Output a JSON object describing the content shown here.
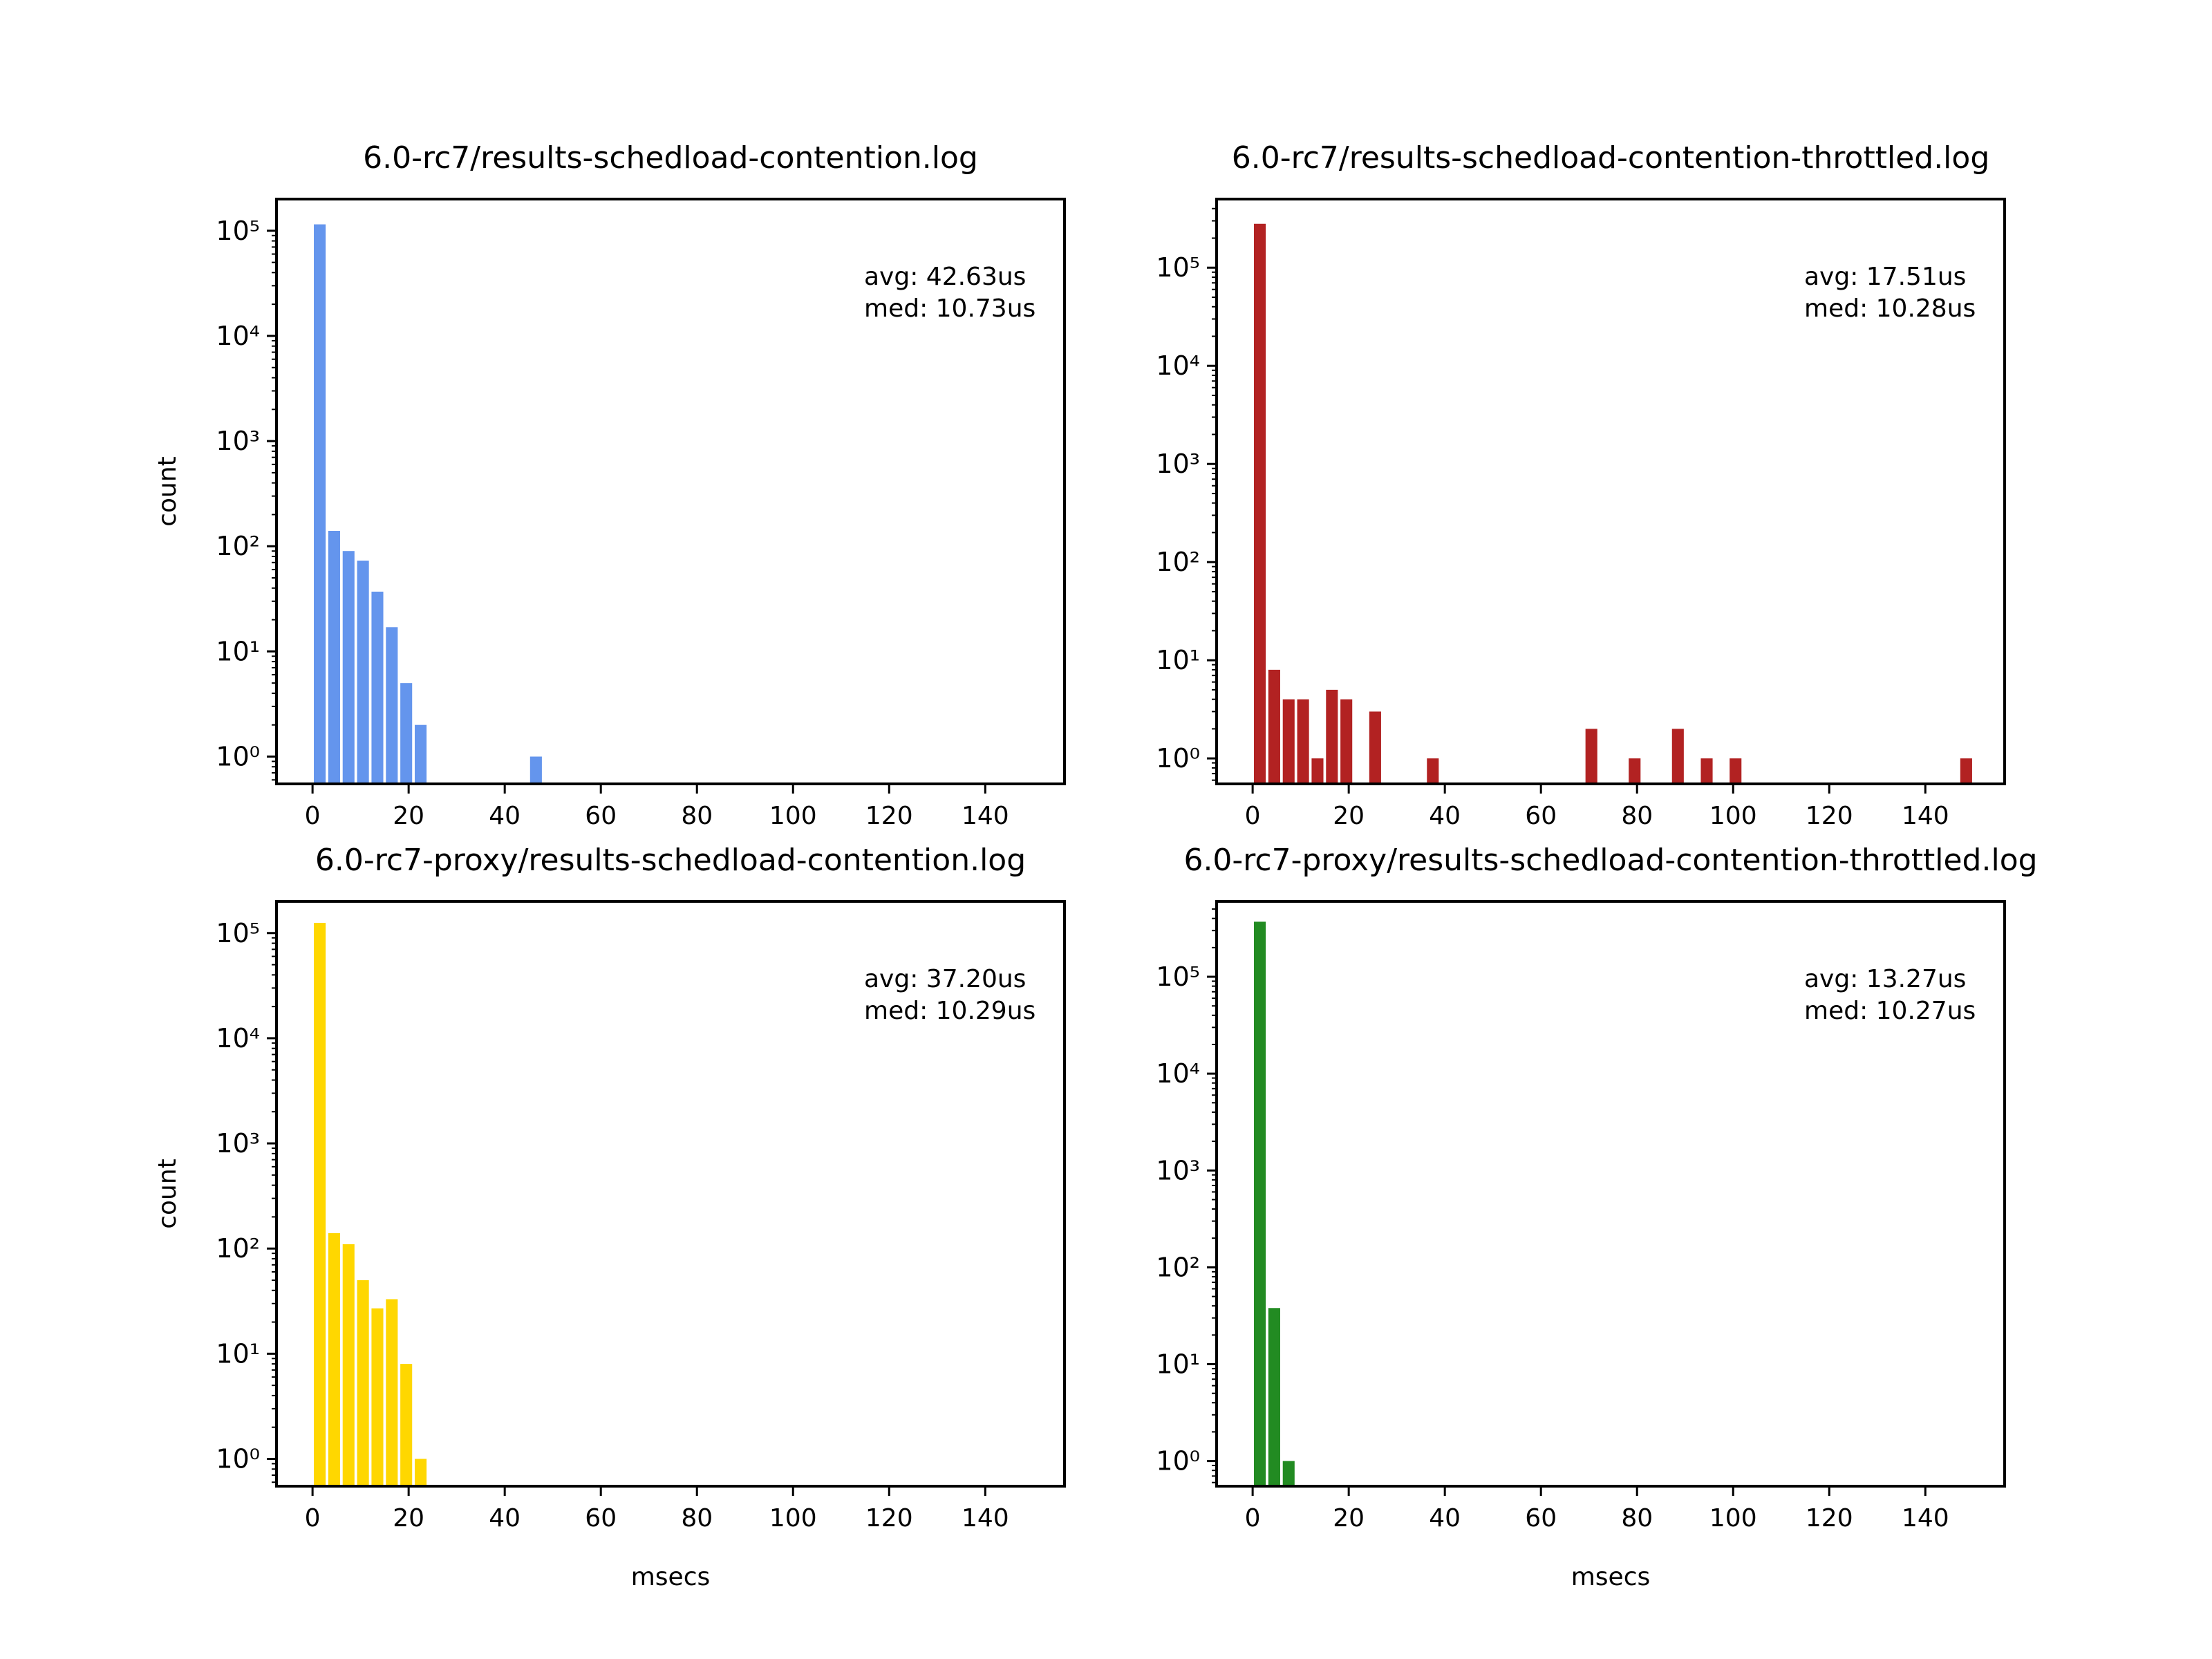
{
  "chart_data": [
    {
      "type": "bar",
      "title": "6.0-rc7/results-schedload-contention.log",
      "xlabel": "",
      "ylabel": "count",
      "color": "#6495ed",
      "yscale": "log",
      "xlim": [
        -7.5,
        156.5
      ],
      "ylim": [
        0.55,
        200000
      ],
      "xticks": [
        0,
        20,
        40,
        60,
        80,
        100,
        120,
        140
      ],
      "yticks": [
        1,
        10,
        100,
        1000,
        10000,
        100000
      ],
      "stats": [
        "avg: 42.63us",
        "med: 10.73us"
      ],
      "bins": [
        {
          "x": 1.5,
          "count": 115000
        },
        {
          "x": 4.5,
          "count": 140
        },
        {
          "x": 7.5,
          "count": 90
        },
        {
          "x": 10.5,
          "count": 73
        },
        {
          "x": 13.5,
          "count": 37
        },
        {
          "x": 16.5,
          "count": 17
        },
        {
          "x": 19.5,
          "count": 5
        },
        {
          "x": 22.5,
          "count": 2
        },
        {
          "x": 46.5,
          "count": 1
        }
      ]
    },
    {
      "type": "bar",
      "title": "6.0-rc7/results-schedload-contention-throttled.log",
      "xlabel": "",
      "ylabel": "",
      "color": "#b22222",
      "yscale": "log",
      "xlim": [
        -7.5,
        156.5
      ],
      "ylim": [
        0.55,
        500000
      ],
      "xticks": [
        0,
        20,
        40,
        60,
        80,
        100,
        120,
        140
      ],
      "yticks": [
        1,
        10,
        100,
        1000,
        10000,
        100000
      ],
      "stats": [
        "avg: 17.51us",
        "med: 10.28us"
      ],
      "bins": [
        {
          "x": 1.5,
          "count": 280000
        },
        {
          "x": 4.5,
          "count": 8
        },
        {
          "x": 7.5,
          "count": 4
        },
        {
          "x": 10.5,
          "count": 4
        },
        {
          "x": 13.5,
          "count": 1
        },
        {
          "x": 16.5,
          "count": 5
        },
        {
          "x": 19.5,
          "count": 4
        },
        {
          "x": 25.5,
          "count": 3
        },
        {
          "x": 37.5,
          "count": 1
        },
        {
          "x": 70.5,
          "count": 2
        },
        {
          "x": 79.5,
          "count": 1
        },
        {
          "x": 88.5,
          "count": 2
        },
        {
          "x": 94.5,
          "count": 1
        },
        {
          "x": 100.5,
          "count": 1
        },
        {
          "x": 148.5,
          "count": 1
        }
      ]
    },
    {
      "type": "bar",
      "title": "6.0-rc7-proxy/results-schedload-contention.log",
      "xlabel": "msecs",
      "ylabel": "count",
      "color": "#ffd700",
      "yscale": "log",
      "xlim": [
        -7.5,
        156.5
      ],
      "ylim": [
        0.55,
        200000
      ],
      "xticks": [
        0,
        20,
        40,
        60,
        80,
        100,
        120,
        140
      ],
      "yticks": [
        1,
        10,
        100,
        1000,
        10000,
        100000
      ],
      "stats": [
        "avg: 37.20us",
        "med: 10.29us"
      ],
      "bins": [
        {
          "x": 1.5,
          "count": 125000
        },
        {
          "x": 4.5,
          "count": 140
        },
        {
          "x": 7.5,
          "count": 110
        },
        {
          "x": 10.5,
          "count": 50
        },
        {
          "x": 13.5,
          "count": 27
        },
        {
          "x": 16.5,
          "count": 33
        },
        {
          "x": 19.5,
          "count": 8
        },
        {
          "x": 22.5,
          "count": 1
        }
      ]
    },
    {
      "type": "bar",
      "title": "6.0-rc7-proxy/results-schedload-contention-throttled.log",
      "xlabel": "msecs",
      "ylabel": "",
      "color": "#228b22",
      "yscale": "log",
      "xlim": [
        -7.5,
        156.5
      ],
      "ylim": [
        0.55,
        600000
      ],
      "xticks": [
        0,
        20,
        40,
        60,
        80,
        100,
        120,
        140
      ],
      "yticks": [
        1,
        10,
        100,
        1000,
        10000,
        100000
      ],
      "stats": [
        "avg: 13.27us",
        "med: 10.27us"
      ],
      "bins": [
        {
          "x": 1.5,
          "count": 370000
        },
        {
          "x": 4.5,
          "count": 38
        },
        {
          "x": 7.5,
          "count": 1
        }
      ]
    }
  ]
}
